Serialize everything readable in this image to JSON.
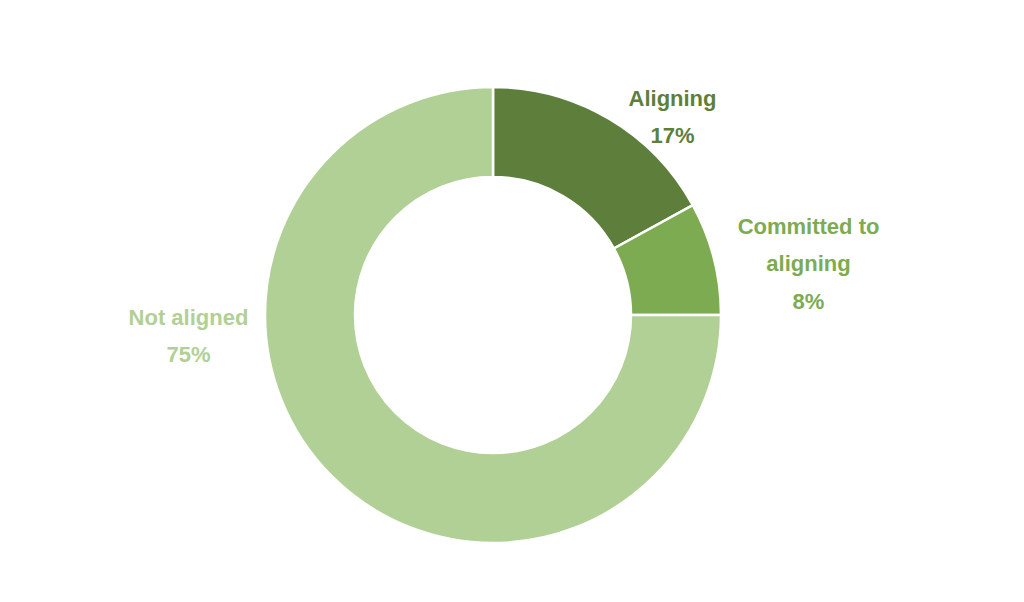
{
  "chart_data": {
    "type": "donut",
    "categories": [
      "Aligning",
      "Committed to aligning",
      "Not aligned"
    ],
    "values": [
      17,
      8,
      75
    ],
    "value_labels": [
      "17%",
      "8%",
      "75%"
    ],
    "colors": [
      "#5d7f3b",
      "#7dab52",
      "#b1d096"
    ],
    "data_labels": true
  }
}
